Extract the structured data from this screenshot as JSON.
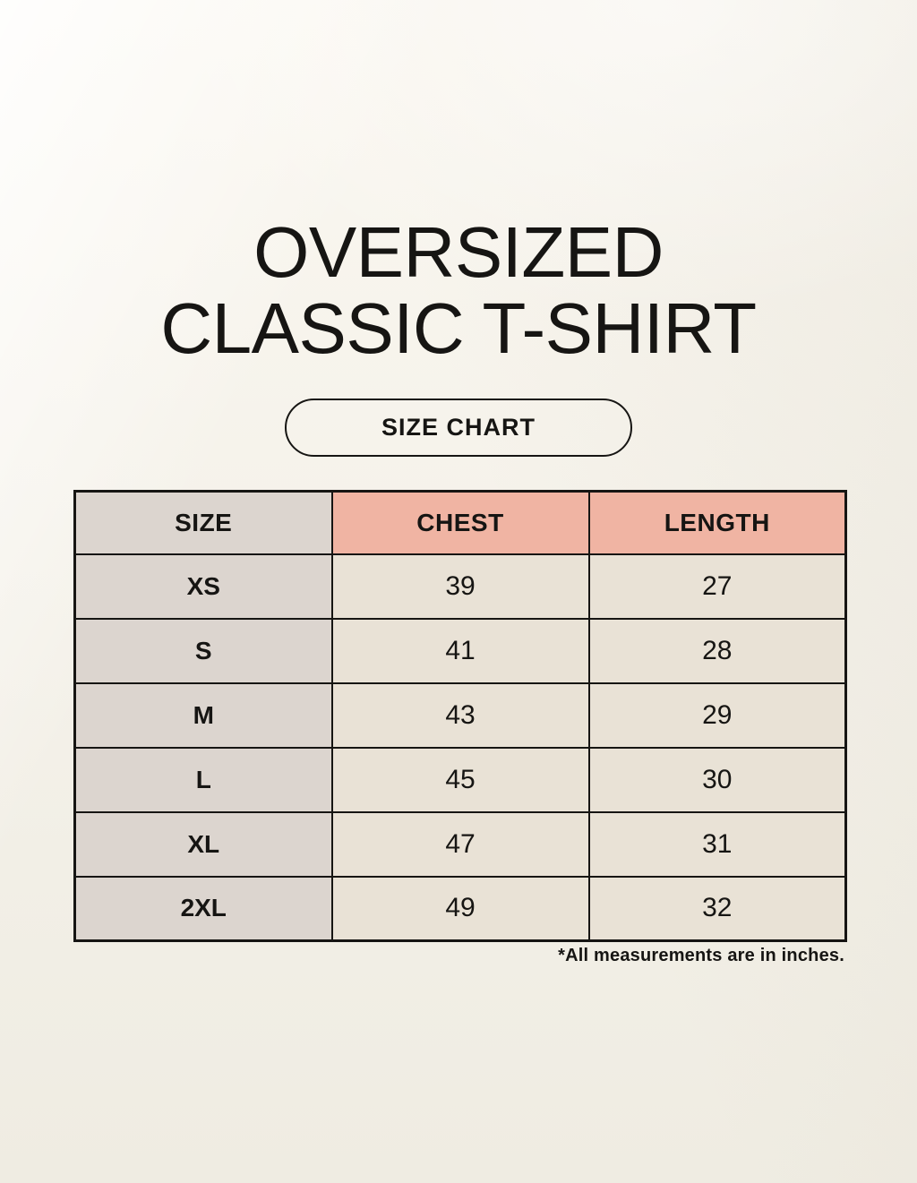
{
  "page": {
    "title_line1": "OVERSIZED",
    "title_line2": "CLASSIC T-SHIRT",
    "badge_label": "SIZE CHART",
    "footnote": "*All measurements are in inches."
  },
  "colors": {
    "background": "#f4f1e9",
    "size_col_bg": "#dcd5cf",
    "accent_bg": "#f0b4a3",
    "cell_bg": "#e9e2d6",
    "table_border": "#161513",
    "text": "#161513"
  },
  "chart_data": {
    "type": "table",
    "title": "OVERSIZED CLASSIC T-SHIRT",
    "subtitle": "SIZE CHART",
    "units": "inches",
    "columns": [
      "SIZE",
      "CHEST",
      "LENGTH"
    ],
    "rows": [
      {
        "size": "XS",
        "chest": "39",
        "length": "27"
      },
      {
        "size": "S",
        "chest": "41",
        "length": "28"
      },
      {
        "size": "M",
        "chest": "43",
        "length": "29"
      },
      {
        "size": "L",
        "chest": "45",
        "length": "30"
      },
      {
        "size": "XL",
        "chest": "47",
        "length": "31"
      },
      {
        "size": "2XL",
        "chest": "49",
        "length": "32"
      }
    ],
    "note": "*All measurements are in inches."
  }
}
